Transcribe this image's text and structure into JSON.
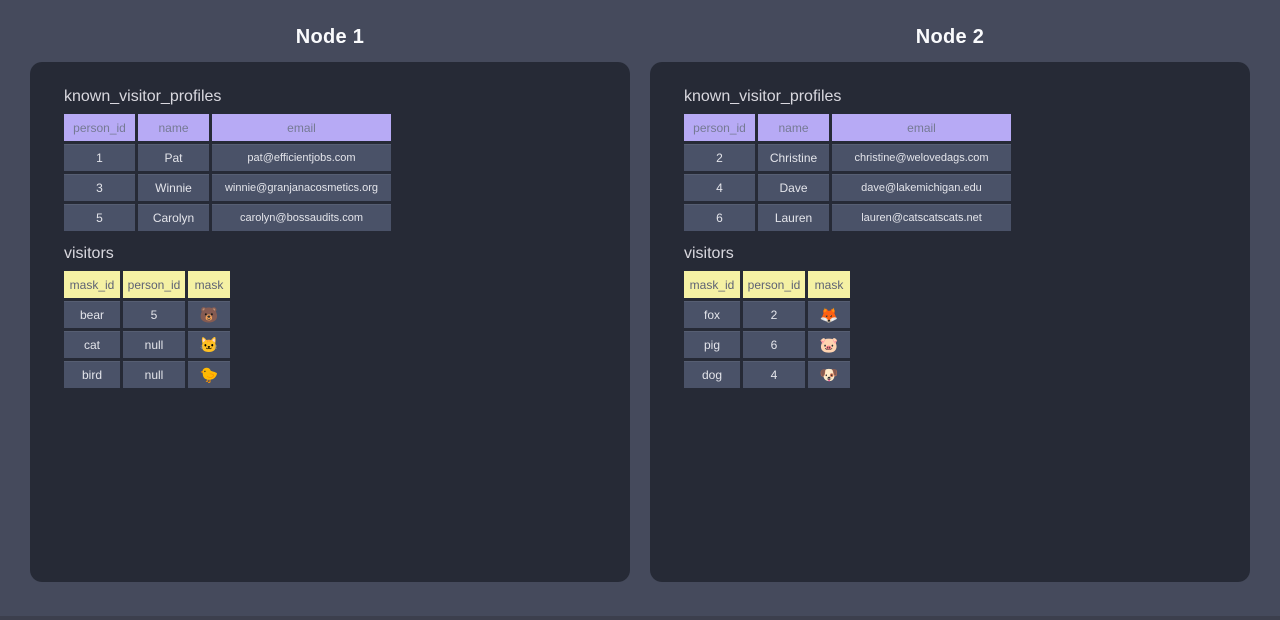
{
  "nodes": [
    {
      "title": "Node 1",
      "tables": [
        {
          "name": "known_visitor_profiles",
          "columns": [
            "person_id",
            "name",
            "email"
          ],
          "rows": [
            [
              "1",
              "Pat",
              "pat@efficientjobs.com"
            ],
            [
              "3",
              "Winnie",
              "winnie@granjanacosmetics.org"
            ],
            [
              "5",
              "Carolyn",
              "carolyn@bossaudits.com"
            ]
          ]
        },
        {
          "name": "visitors",
          "columns": [
            "mask_id",
            "person_id",
            "mask"
          ],
          "rows": [
            [
              "bear",
              "5",
              "🐻"
            ],
            [
              "cat",
              "null",
              "🐱"
            ],
            [
              "bird",
              "null",
              "🐤"
            ]
          ]
        }
      ]
    },
    {
      "title": "Node 2",
      "tables": [
        {
          "name": "known_visitor_profiles",
          "columns": [
            "person_id",
            "name",
            "email"
          ],
          "rows": [
            [
              "2",
              "Christine",
              "christine@welovedags.com"
            ],
            [
              "4",
              "Dave",
              "dave@lakemichigan.edu"
            ],
            [
              "6",
              "Lauren",
              "lauren@catscatscats.net"
            ]
          ]
        },
        {
          "name": "visitors",
          "columns": [
            "mask_id",
            "person_id",
            "mask"
          ],
          "rows": [
            [
              "fox",
              "2",
              "🦊"
            ],
            [
              "pig",
              "6",
              "🐷"
            ],
            [
              "dog",
              "4",
              "🐶"
            ]
          ]
        }
      ]
    }
  ],
  "emoji_legend": {
    "🐻": "bear-face-emoji",
    "🐱": "cat-face-emoji",
    "🐤": "baby-chick-emoji",
    "🦊": "fox-face-emoji",
    "🐷": "pig-face-emoji",
    "🐶": "dog-face-emoji"
  },
  "colors": {
    "background": "#454a5c",
    "panel": "#262a36",
    "cell": "#4a5268",
    "profiles_header": "#b7aaf5",
    "visitors_header": "#f5f1a4",
    "node_title_text": "#fafbfd",
    "table_title_text": "#d9d8df",
    "cell_text": "#e3e4ea"
  }
}
